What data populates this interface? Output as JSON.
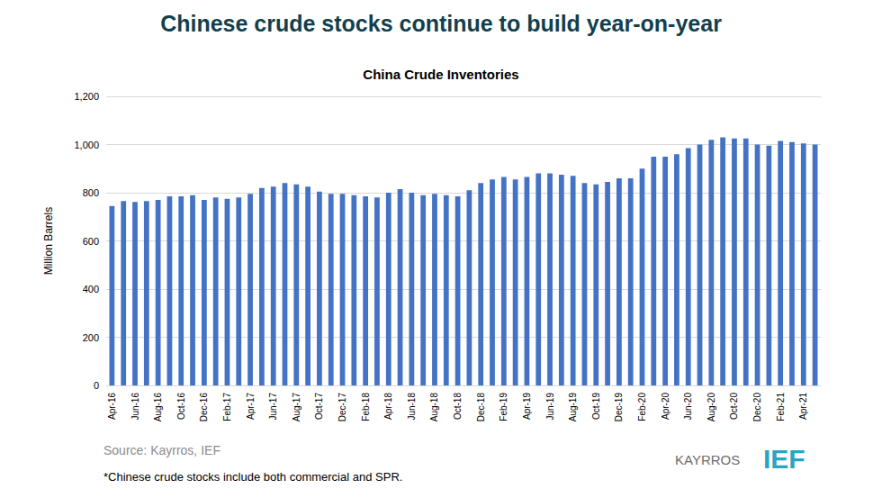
{
  "chart_data": {
    "type": "bar",
    "title": "Chinese crude stocks continue to build year-on-year",
    "subtitle": "China Crude Inventories",
    "y_label": "Million Barrels",
    "source": "Source: Kayrros, IEF",
    "footnote": "*Chinese crude stocks include both commercial and SPR.",
    "logos": [
      "KAYRROS",
      "IEF"
    ],
    "categories": [
      "Apr-16",
      null,
      "Jun-16",
      null,
      "Aug-16",
      null,
      "Oct-16",
      null,
      "Dec-16",
      null,
      "Feb-17",
      null,
      "Apr-17",
      null,
      "Jun-17",
      null,
      "Aug-17",
      null,
      "Oct-17",
      null,
      "Dec-17",
      null,
      "Feb-18",
      null,
      "Apr-18",
      null,
      "Jun-18",
      null,
      "Aug-18",
      null,
      "Oct-18",
      null,
      "Dec-18",
      null,
      "Feb-19",
      null,
      "Apr-19",
      null,
      "Jun-19",
      null,
      "Aug-19",
      null,
      "Oct-19",
      null,
      "Dec-19",
      null,
      "Feb-20",
      null,
      "Apr-20",
      null,
      "Jun-20",
      null,
      "Aug-20",
      null,
      "Oct-20",
      null,
      "Dec-20",
      null,
      "Feb-21",
      null,
      "Apr-21",
      null
    ],
    "values": [
      745,
      765,
      762,
      765,
      770,
      785,
      785,
      790,
      770,
      780,
      775,
      780,
      795,
      820,
      825,
      840,
      835,
      825,
      805,
      795,
      795,
      790,
      785,
      780,
      800,
      815,
      800,
      790,
      795,
      790,
      785,
      810,
      840,
      855,
      865,
      855,
      865,
      880,
      880,
      875,
      870,
      840,
      835,
      845,
      860,
      860,
      900,
      950,
      950,
      960,
      985,
      1000,
      1020,
      1030,
      1025,
      1025,
      1000,
      995,
      1015,
      1010,
      1005,
      1000
    ],
    "color": "#4472c4",
    "ylim": [
      0,
      1200
    ],
    "yticks": [
      0,
      200,
      400,
      600,
      800,
      {
        "value": 1000,
        "label": "1,000"
      },
      {
        "value": 1200,
        "label": "1,200"
      }
    ],
    "grid": true
  }
}
